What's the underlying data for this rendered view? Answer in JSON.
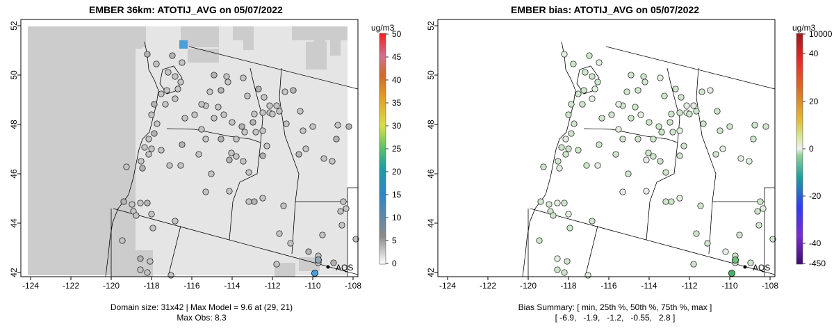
{
  "left": {
    "title": "EMBER 36km: ATOTIJ_AVG on 05/07/2022",
    "caption_line1": "Domain size: 31x42 | Max Model = 9.6 at (29, 21)",
    "caption_line2": "Max Obs: 8.3",
    "colorbar_unit": "ug/m3",
    "colorbar_ticks": [
      "0",
      "5",
      "10",
      "15",
      "20",
      "25",
      "30",
      "35",
      "40",
      "45",
      "50"
    ],
    "marker_label": "AQS"
  },
  "right": {
    "title": "EMBER bias: ATOTIJ_AVG on 05/07/2022",
    "caption_line1": "Bias Summary: [ min, 25th %, 50th %, 75th %, max ]",
    "caption_line2": "[ -6.9,   -1.9,   -1.2,   -0.55,   2.8 ]",
    "colorbar_unit": "ug/m3",
    "colorbar_ticks": [
      "-450",
      "-40",
      "-20",
      "0",
      "20",
      "40",
      "10000"
    ],
    "marker_label": "AQS"
  },
  "x_ticks": [
    "-124",
    "-122",
    "-120",
    "-118",
    "-116",
    "-114",
    "-112",
    "-110",
    "-108"
  ],
  "y_ticks": [
    "42",
    "44",
    "46",
    "48",
    "50",
    "52"
  ],
  "colors": {
    "land_light": "#e5e5e5",
    "land_dark": "#cccccc",
    "station_gray": "#c4c4c4",
    "station_green": "#cfe6cc",
    "high_blue": "#4a9fd8"
  }
}
